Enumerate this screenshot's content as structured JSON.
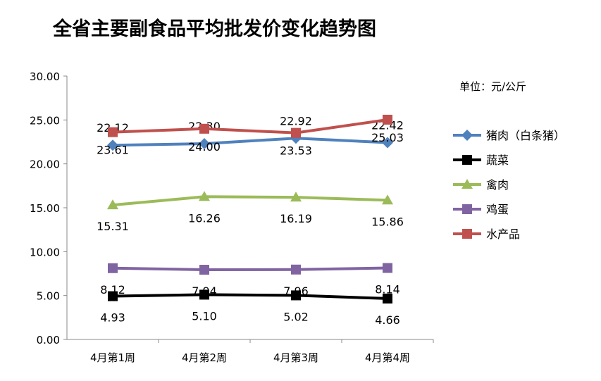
{
  "chart_data": {
    "type": "line",
    "title": "全省主要副食品平均批发价变化趋势图",
    "unit_label": "单位：元/公斤",
    "categories": [
      "4月第1周",
      "4月第2周",
      "4月第3周",
      "4月第4周"
    ],
    "ylim": [
      0,
      30
    ],
    "yticks": [
      "0.00",
      "5.00",
      "10.00",
      "15.00",
      "20.00",
      "25.00",
      "30.00"
    ],
    "grid": false,
    "legend_position": "right",
    "series": [
      {
        "name": "猪肉（白条猪）",
        "color": "#4f81bd",
        "marker": "diamond",
        "values": [
          22.12,
          22.3,
          22.92,
          22.42
        ],
        "labels": [
          "22.12",
          "22.30",
          "22.92",
          "22.42"
        ],
        "label_offset": "above"
      },
      {
        "name": "蔬菜",
        "color": "#000000",
        "marker": "square",
        "values": [
          4.93,
          5.1,
          5.02,
          4.66
        ],
        "labels": [
          "4.93",
          "5.10",
          "5.02",
          "4.66"
        ],
        "label_offset": "below"
      },
      {
        "name": "禽肉",
        "color": "#9bbb59",
        "marker": "triangle",
        "values": [
          15.31,
          16.26,
          16.19,
          15.86
        ],
        "labels": [
          "15.31",
          "16.26",
          "16.19",
          "15.86"
        ],
        "label_offset": "below"
      },
      {
        "name": "鸡蛋",
        "color": "#8064a2",
        "marker": "square",
        "values": [
          8.12,
          7.94,
          7.96,
          8.14
        ],
        "labels": [
          "8.12",
          "7.94",
          "7.96",
          "8.14"
        ],
        "label_offset": "below"
      },
      {
        "name": "水产品",
        "color": "#c0504d",
        "marker": "square",
        "values": [
          23.61,
          24.0,
          23.53,
          25.03
        ],
        "labels": [
          "23.61",
          "24.00",
          "23.53",
          "25.03"
        ],
        "label_offset": "below"
      }
    ]
  }
}
